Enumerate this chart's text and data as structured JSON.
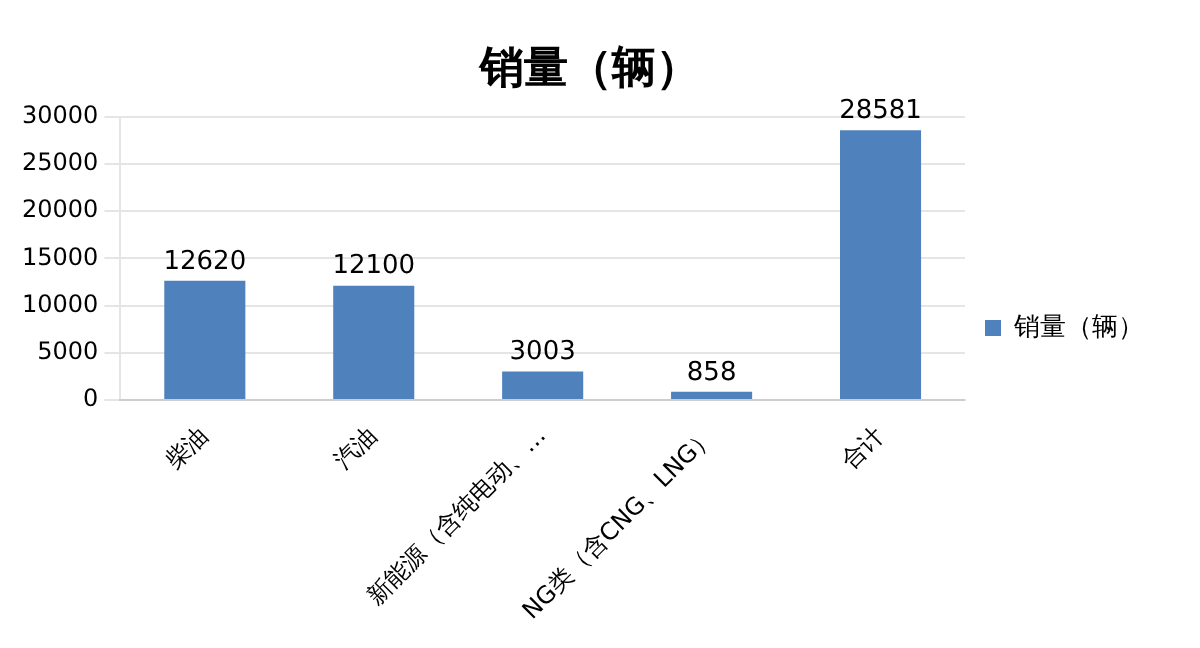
{
  "chart_data": {
    "type": "bar",
    "title": "销量（辆）",
    "categories": [
      "柴油",
      "汽油",
      "新能源（含纯电动、…",
      "NG类（含CNG、LNG）",
      "合计"
    ],
    "series": [
      {
        "name": "销量（辆）",
        "color": "#4f81bd",
        "values": [
          12620,
          12100,
          3003,
          858,
          28581
        ]
      }
    ],
    "ylim": [
      0,
      30000
    ],
    "yticks": [
      0,
      5000,
      10000,
      15000,
      20000,
      25000,
      30000
    ],
    "grid": "y",
    "legend": "right",
    "data_labels": true
  }
}
